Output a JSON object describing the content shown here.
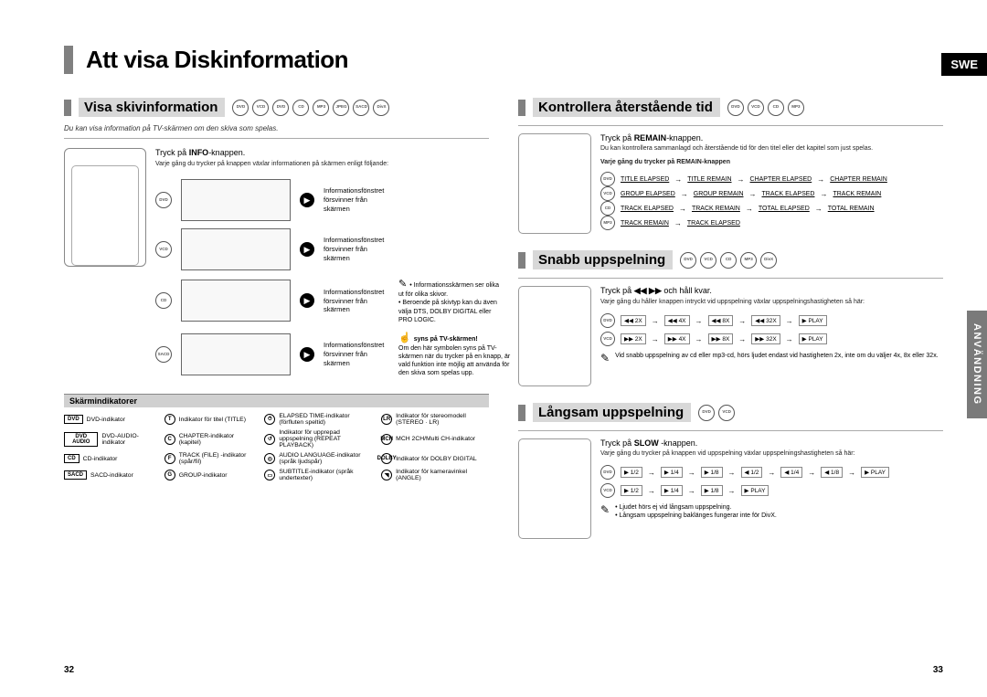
{
  "lang_tag": "SWE",
  "side_tab": "ANVÄNDNING",
  "main_title": "Att visa Diskinformation",
  "page_left": "32",
  "page_right": "33",
  "discs_all": [
    "DVD",
    "VCD",
    "DVD",
    "CD",
    "MP3",
    "JPEG",
    "SACD",
    "DivX"
  ],
  "discs_4": [
    "DVD",
    "VCD",
    "CD",
    "MP3"
  ],
  "discs_5": [
    "DVD",
    "VCD",
    "CD",
    "MP3",
    "DivX"
  ],
  "discs_2": [
    "DVD",
    "VCD"
  ],
  "left": {
    "title": "Visa skivinformation",
    "note": "Du kan visa information på TV-skärmen om den skiva som spelas.",
    "step": "Tryck på INFO-knappen.",
    "step_sub": "Varje gång du trycker på knappen växlar informationen på skärmen enligt följande:",
    "info_disappears": "Informationsfönstret försvinner från skärmen",
    "row_labels": [
      "DVD",
      "VCD",
      "CD",
      "SACD",
      "MP3 JPEG"
    ],
    "bullet1_a": "Informationsskärmen ser olika ut för olika skivor.",
    "bullet1_b": "Beroende på skivtyp kan du även välja DTS, DOLBY DIGITAL eller PRO LOGIC.",
    "hand_title": "syns på TV-skärmen!",
    "hand_body": "Om den här symbolen syns på TV-skärmen när du trycker på en knapp, är vald funktion inte möjlig att använda för den skiva som spelas upp.",
    "ind_header": "Skärmindikatorer",
    "indicators_col1": [
      [
        "DVD",
        "DVD-indikator"
      ],
      [
        "DVD AUDIO",
        "DVD-AUDIO-indikator"
      ],
      [
        "CD",
        "CD-indikator"
      ],
      [
        "SACD",
        "SACD-indikator"
      ]
    ],
    "indicators_col2": [
      [
        "T",
        "Indikator för titel (TITLE)"
      ],
      [
        "C",
        "CHAPTER-indikator (kapitel)"
      ],
      [
        "F",
        "TRACK (FILE) -indikator (spår/fil)"
      ],
      [
        "G",
        "GROUP-indikator"
      ]
    ],
    "indicators_col3": [
      [
        "⏱",
        "ELAPSED TIME-indikator (förfluten speltid)"
      ],
      [
        "↺",
        "Indikator för upprepad uppspelning (REPEAT PLAYBACK)"
      ],
      [
        "◎",
        "AUDIO LANGUAGE-indikator (språk ljudspår)"
      ],
      [
        "▭",
        "SUBTITLE-indikator (språk undertexter)"
      ]
    ],
    "indicators_col4": [
      [
        "LR",
        "Indikator för stereomodell (STEREO · LR)"
      ],
      [
        "MCH",
        "MCH 2CH/Multi CH-indikator"
      ],
      [
        "DOLBY",
        "Indikator för DOLBY DIGITAL"
      ],
      [
        "◥",
        "Indikator för kameravinkel (ANGLE)"
      ]
    ]
  },
  "right": {
    "sec1_title": "Kontrollera återstående tid",
    "sec1_step": "Tryck på REMAIN-knappen.",
    "sec1_sub": "Du kan kontrollera sammanlagd och återstående tid för den titel eller det kapitel som just spelas.",
    "sec1_bold": "Varje gång du trycker på REMAIN-knappen",
    "remain_rows": [
      [
        "DVD",
        [
          "TITLE ELAPSED",
          "TITLE REMAIN",
          "CHAPTER ELAPSED",
          "CHAPTER REMAIN"
        ]
      ],
      [
        "VCD",
        [
          "GROUP ELAPSED",
          "GROUP REMAIN",
          "TRACK ELAPSED",
          "TRACK REMAIN"
        ]
      ],
      [
        "CD",
        [
          "TRACK ELAPSED",
          "TRACK REMAIN",
          "TOTAL ELAPSED",
          "TOTAL REMAIN"
        ]
      ],
      [
        "MP3",
        [
          "TRACK REMAIN",
          "TRACK ELAPSED"
        ]
      ]
    ],
    "sec2_title": "Snabb uppspelning",
    "sec2_step_a": "Tryck på ",
    "sec2_step_b": " och håll kvar.",
    "sec2_sub": "Varje gång du håller knappen intryckt vid uppspelning växlar uppspelningshastigheten så här:",
    "speed_rows": [
      [
        "◀◀ 2X",
        "◀◀ 4X",
        "◀◀ 8X",
        "◀◀ 32X",
        "▶ PLAY"
      ],
      [
        "▶▶ 2X",
        "▶▶ 4X",
        "▶▶ 8X",
        "▶▶ 32X",
        "▶ PLAY"
      ]
    ],
    "sec2_note": "Vid snabb uppspelning av cd eller mp3-cd, hörs ljudet endast vid hastigheten 2x, inte om du väljer 4x, 8x eller 32x.",
    "sec3_title": "Långsam uppspelning",
    "sec3_step": "Tryck på SLOW -knappen.",
    "sec3_sub": "Varje gång du trycker på knappen vid uppspelning växlar uppspelningshastigheten så här:",
    "slow_rows": [
      [
        "▶ 1/2",
        "▶ 1/4",
        "▶ 1/8",
        "◀ 1/2",
        "◀ 1/4",
        "◀ 1/8",
        "▶ PLAY"
      ],
      [
        "▶ 1/2",
        "▶ 1/4",
        "▶ 1/8",
        "▶ PLAY"
      ]
    ],
    "sec3_notes": [
      "Ljudet hörs ej vid långsam uppspelning.",
      "Långsam uppspelning baklänges fungerar inte för DivX."
    ]
  }
}
